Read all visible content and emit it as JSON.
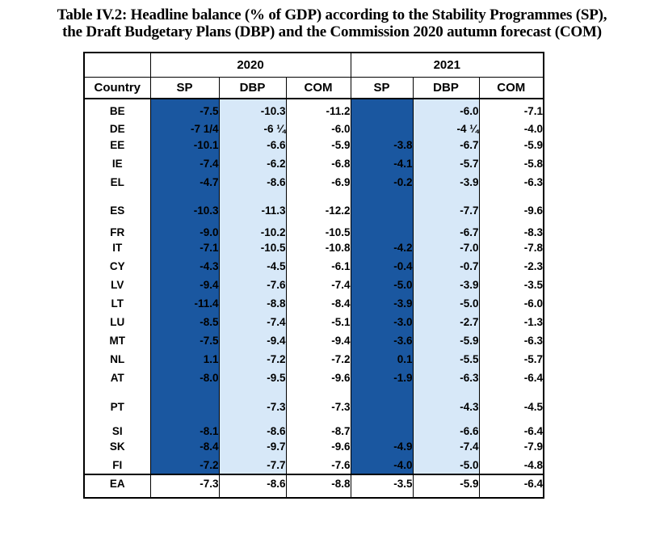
{
  "title": {
    "line1": "Table IV.2: Headline balance (% of GDP) according to the Stability Programmes (SP),",
    "line2": "the Draft Budgetary Plans (DBP) and the Commission 2020 autumn forecast (COM)"
  },
  "colors": {
    "sp_column_bg": "#1A57A0",
    "dbp_column_bg": "#D7E8F8",
    "com_column_bg": "#FFFFFF",
    "sp_text": "#FFFFFF",
    "body_text": "#000000",
    "border": "#000000"
  },
  "table": {
    "corner_label": "Country",
    "year_groups": [
      "2020",
      "2021"
    ],
    "sub_headers": [
      "SP",
      "DBP",
      "COM",
      "SP",
      "DBP",
      "COM"
    ],
    "columns": [
      "country",
      "sp_2020",
      "dbp_2020",
      "com_2020",
      "sp_2021",
      "dbp_2021",
      "com_2021"
    ],
    "rows": [
      {
        "country": "BE",
        "values": [
          "-7.5",
          "-10.3",
          "-11.2",
          "",
          "-6.0",
          "-7.1"
        ],
        "gap": 0
      },
      {
        "country": "DE",
        "values": [
          "-7 1/4",
          "-6 ¼",
          "-6.0",
          "",
          "-4 ¼",
          "-4.0"
        ],
        "gap": 5
      },
      {
        "country": "EE",
        "values": [
          "-10.1",
          "-6.6",
          "-5.9",
          "-3.8",
          "-6.7",
          "-5.9"
        ],
        "gap": 0
      },
      {
        "country": "IE",
        "values": [
          "-7.4",
          "-6.2",
          "-6.8",
          "-4.1",
          "-5.7",
          "-5.8"
        ],
        "gap": 0
      },
      {
        "country": "EL",
        "values": [
          "-4.7",
          "-8.6",
          "-6.9",
          "-0.2",
          "-3.9",
          "-6.3"
        ],
        "gap": 0
      },
      {
        "country": "ES",
        "values": [
          "-10.3",
          "-11.3",
          "-12.2",
          "",
          "-7.7",
          "-9.6"
        ],
        "gap": 16
      },
      {
        "country": "FR",
        "values": [
          "-9.0",
          "-10.2",
          "-10.5",
          "",
          "-6.7",
          "-8.3"
        ],
        "gap": 12
      },
      {
        "country": "IT",
        "values": [
          "-7.1",
          "-10.5",
          "-10.8",
          "-4.2",
          "-7.0",
          "-7.8"
        ],
        "gap": 0
      },
      {
        "country": "CY",
        "values": [
          "-4.3",
          "-4.5",
          "-6.1",
          "-0.4",
          "-0.7",
          "-2.3"
        ],
        "gap": 0
      },
      {
        "country": "LV",
        "values": [
          "-9.4",
          "-7.6",
          "-7.4",
          "-5.0",
          "-3.9",
          "-3.5"
        ],
        "gap": 0
      },
      {
        "country": "LT",
        "values": [
          "-11.4",
          "-8.8",
          "-8.4",
          "-3.9",
          "-5.0",
          "-6.0"
        ],
        "gap": 0
      },
      {
        "country": "LU",
        "values": [
          "-8.5",
          "-7.4",
          "-5.1",
          "-3.0",
          "-2.7",
          "-1.3"
        ],
        "gap": 0
      },
      {
        "country": "MT",
        "values": [
          "-7.5",
          "-9.4",
          "-9.4",
          "-3.6",
          "-5.9",
          "-6.3"
        ],
        "gap": 0
      },
      {
        "country": "NL",
        "values": [
          "1.1",
          "-7.2",
          "-7.2",
          "0.1",
          "-5.5",
          "-5.7"
        ],
        "gap": 0
      },
      {
        "country": "AT",
        "values": [
          "-8.0",
          "-9.5",
          "-9.6",
          "-1.9",
          "-6.3",
          "-6.4"
        ],
        "gap": 0
      },
      {
        "country": "PT",
        "values": [
          "",
          "-7.3",
          "-7.3",
          "",
          "-4.3",
          "-4.5"
        ],
        "gap": 17
      },
      {
        "country": "SI",
        "values": [
          "-8.1",
          "-8.6",
          "-8.7",
          "",
          "-6.6",
          "-6.4"
        ],
        "gap": 15
      },
      {
        "country": "SK",
        "values": [
          "-8.4",
          "-9.7",
          "-9.6",
          "-4.9",
          "-7.4",
          "-7.9"
        ],
        "gap": 0
      },
      {
        "country": "FI",
        "values": [
          "-7.2",
          "-7.7",
          "-7.6",
          "-4.0",
          "-5.0",
          "-4.8"
        ],
        "gap": 0
      }
    ],
    "footer_row": {
      "country": "EA",
      "values": [
        "-7.3",
        "-8.6",
        "-8.8",
        "-3.5",
        "-5.9",
        "-6.4"
      ]
    }
  }
}
